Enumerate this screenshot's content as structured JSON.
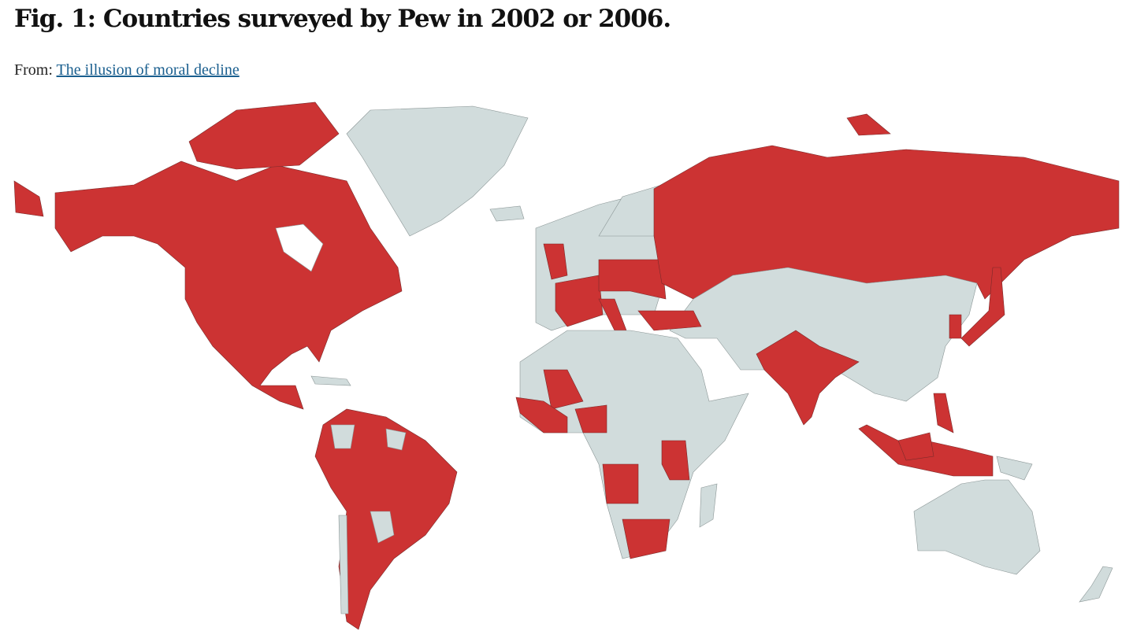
{
  "header": {
    "title": "Fig. 1: Countries surveyed by Pew in 2002 or 2006.",
    "from_label": "From:",
    "source_link": "The illusion of moral decline"
  }
}
